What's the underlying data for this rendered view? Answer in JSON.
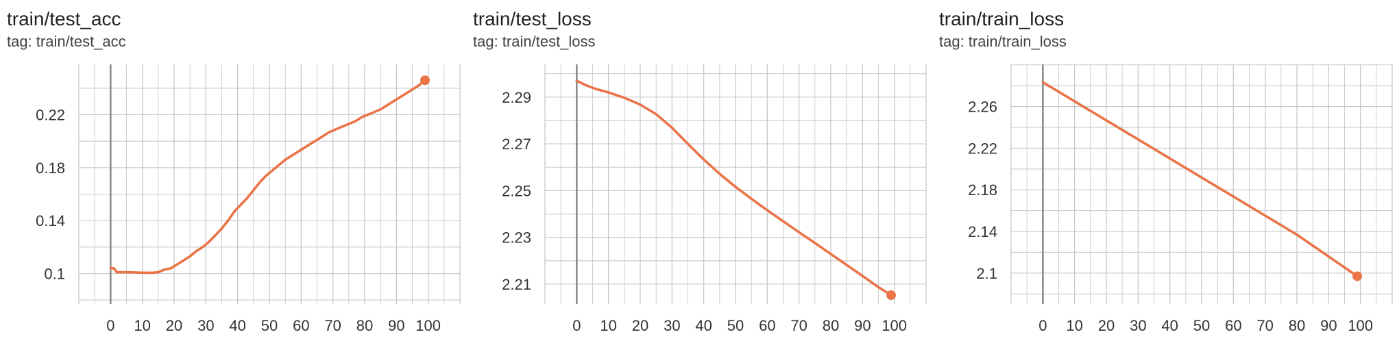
{
  "colors": {
    "line": "#ea7448",
    "grid": "#c8c8c8",
    "zero_axis": "#8a8a8a",
    "tick_text": "#333333"
  },
  "chart_data": [
    {
      "type": "line",
      "title": "train/test_acc",
      "tag": "tag: train/test_acc",
      "xlim": [
        -10,
        110
      ],
      "ylim": [
        0.077,
        0.258
      ],
      "x_ticks": [
        0,
        10,
        20,
        30,
        40,
        50,
        60,
        70,
        80,
        90,
        100
      ],
      "y_ticks": [
        0.1,
        0.14,
        0.18,
        0.22
      ],
      "y_tick_labels": [
        "0.1",
        "0.14",
        "0.18",
        "0.22"
      ],
      "grid": true,
      "series": [
        {
          "x": [
            0,
            1,
            2,
            5,
            10,
            13,
            15,
            17,
            19,
            21,
            23,
            25,
            27,
            29,
            31,
            33,
            35,
            37,
            39,
            41,
            43,
            45,
            47,
            49,
            51,
            53,
            55,
            57,
            59,
            61,
            63,
            65,
            67,
            69,
            71,
            73,
            75,
            77,
            79,
            81,
            83,
            85,
            87,
            89,
            91,
            93,
            95,
            97,
            99
          ],
          "y": [
            0.104,
            0.104,
            0.101,
            0.101,
            0.1006,
            0.1006,
            0.101,
            0.103,
            0.104,
            0.107,
            0.11,
            0.113,
            0.117,
            0.12,
            0.124,
            0.129,
            0.134,
            0.14,
            0.147,
            0.152,
            0.157,
            0.163,
            0.169,
            0.174,
            0.178,
            0.182,
            0.186,
            0.189,
            0.192,
            0.195,
            0.198,
            0.201,
            0.204,
            0.207,
            0.209,
            0.211,
            0.213,
            0.215,
            0.218,
            0.22,
            0.222,
            0.224,
            0.227,
            0.23,
            0.233,
            0.236,
            0.239,
            0.242,
            0.246
          ]
        }
      ]
    },
    {
      "type": "line",
      "title": "train/test_loss",
      "tag": "tag: train/test_loss",
      "xlim": [
        -10,
        110
      ],
      "ylim": [
        2.2015,
        2.304
      ],
      "x_ticks": [
        0,
        10,
        20,
        30,
        40,
        50,
        60,
        70,
        80,
        90,
        100
      ],
      "y_ticks": [
        2.21,
        2.23,
        2.25,
        2.27,
        2.29
      ],
      "y_tick_labels": [
        "2.21",
        "2.23",
        "2.25",
        "2.27",
        "2.29"
      ],
      "grid": true,
      "series": [
        {
          "x": [
            0,
            3,
            6,
            10,
            15,
            20,
            25,
            30,
            35,
            40,
            45,
            50,
            55,
            60,
            65,
            70,
            75,
            80,
            85,
            90,
            95,
            99
          ],
          "y": [
            2.297,
            2.295,
            2.2935,
            2.292,
            2.2897,
            2.2868,
            2.2827,
            2.2769,
            2.27,
            2.2633,
            2.2572,
            2.2516,
            2.2465,
            2.2416,
            2.2369,
            2.2322,
            2.2276,
            2.2229,
            2.2182,
            2.2135,
            2.2087,
            2.2053
          ]
        }
      ]
    },
    {
      "type": "line",
      "title": "train/train_loss",
      "tag": "tag: train/train_loss",
      "xlim": [
        -10,
        110
      ],
      "ylim": [
        2.0703,
        2.3005
      ],
      "x_ticks": [
        0,
        10,
        20,
        30,
        40,
        50,
        60,
        70,
        80,
        90,
        100
      ],
      "y_ticks": [
        2.1,
        2.14,
        2.18,
        2.22,
        2.26
      ],
      "y_tick_labels": [
        "2.1",
        "2.14",
        "2.18",
        "2.22",
        "2.26"
      ],
      "grid": true,
      "series": [
        {
          "x": [
            0,
            20,
            40,
            60,
            80,
            99
          ],
          "y": [
            2.2833,
            2.2467,
            2.2101,
            2.1735,
            2.1369,
            2.097
          ]
        }
      ]
    }
  ]
}
